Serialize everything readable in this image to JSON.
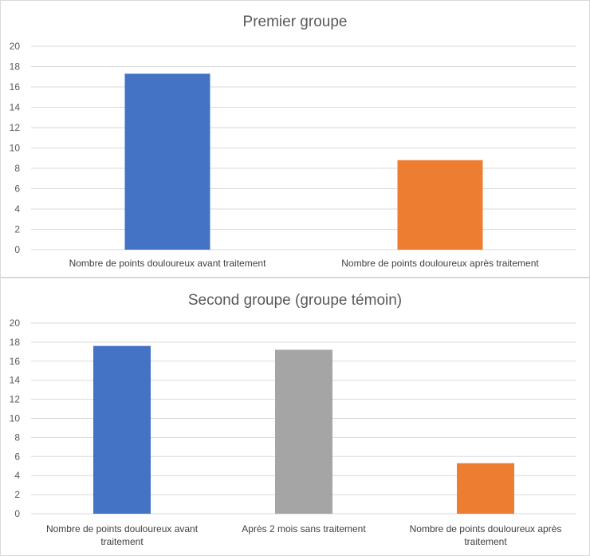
{
  "chart_data": [
    {
      "type": "bar",
      "title": "Premier groupe",
      "categories": [
        [
          "Nombre de points douloureux avant traitement"
        ],
        [
          "Nombre de points douloureux après traitement"
        ]
      ],
      "values": [
        17.3,
        8.8
      ],
      "colors": [
        "#4472C4",
        "#ED7D31"
      ],
      "ylim": [
        0,
        20
      ],
      "yticks": [
        "0",
        "2",
        "4",
        "6",
        "8",
        "10",
        "12",
        "14",
        "16",
        "18",
        "20"
      ],
      "grid": true,
      "legend": "none"
    },
    {
      "type": "bar",
      "title": "Second groupe (groupe témoin)",
      "categories": [
        [
          "Nombre de points douloureux avant",
          "traitement"
        ],
        [
          "Après 2 mois sans traitement"
        ],
        [
          "Nombre de points douloureux après",
          "traitement"
        ]
      ],
      "values": [
        17.6,
        17.2,
        5.3
      ],
      "colors": [
        "#4472C4",
        "#A5A5A5",
        "#ED7D31"
      ],
      "ylim": [
        0,
        20
      ],
      "yticks": [
        "0",
        "2",
        "4",
        "6",
        "8",
        "10",
        "12",
        "14",
        "16",
        "18",
        "20"
      ],
      "grid": true,
      "legend": "none"
    }
  ]
}
